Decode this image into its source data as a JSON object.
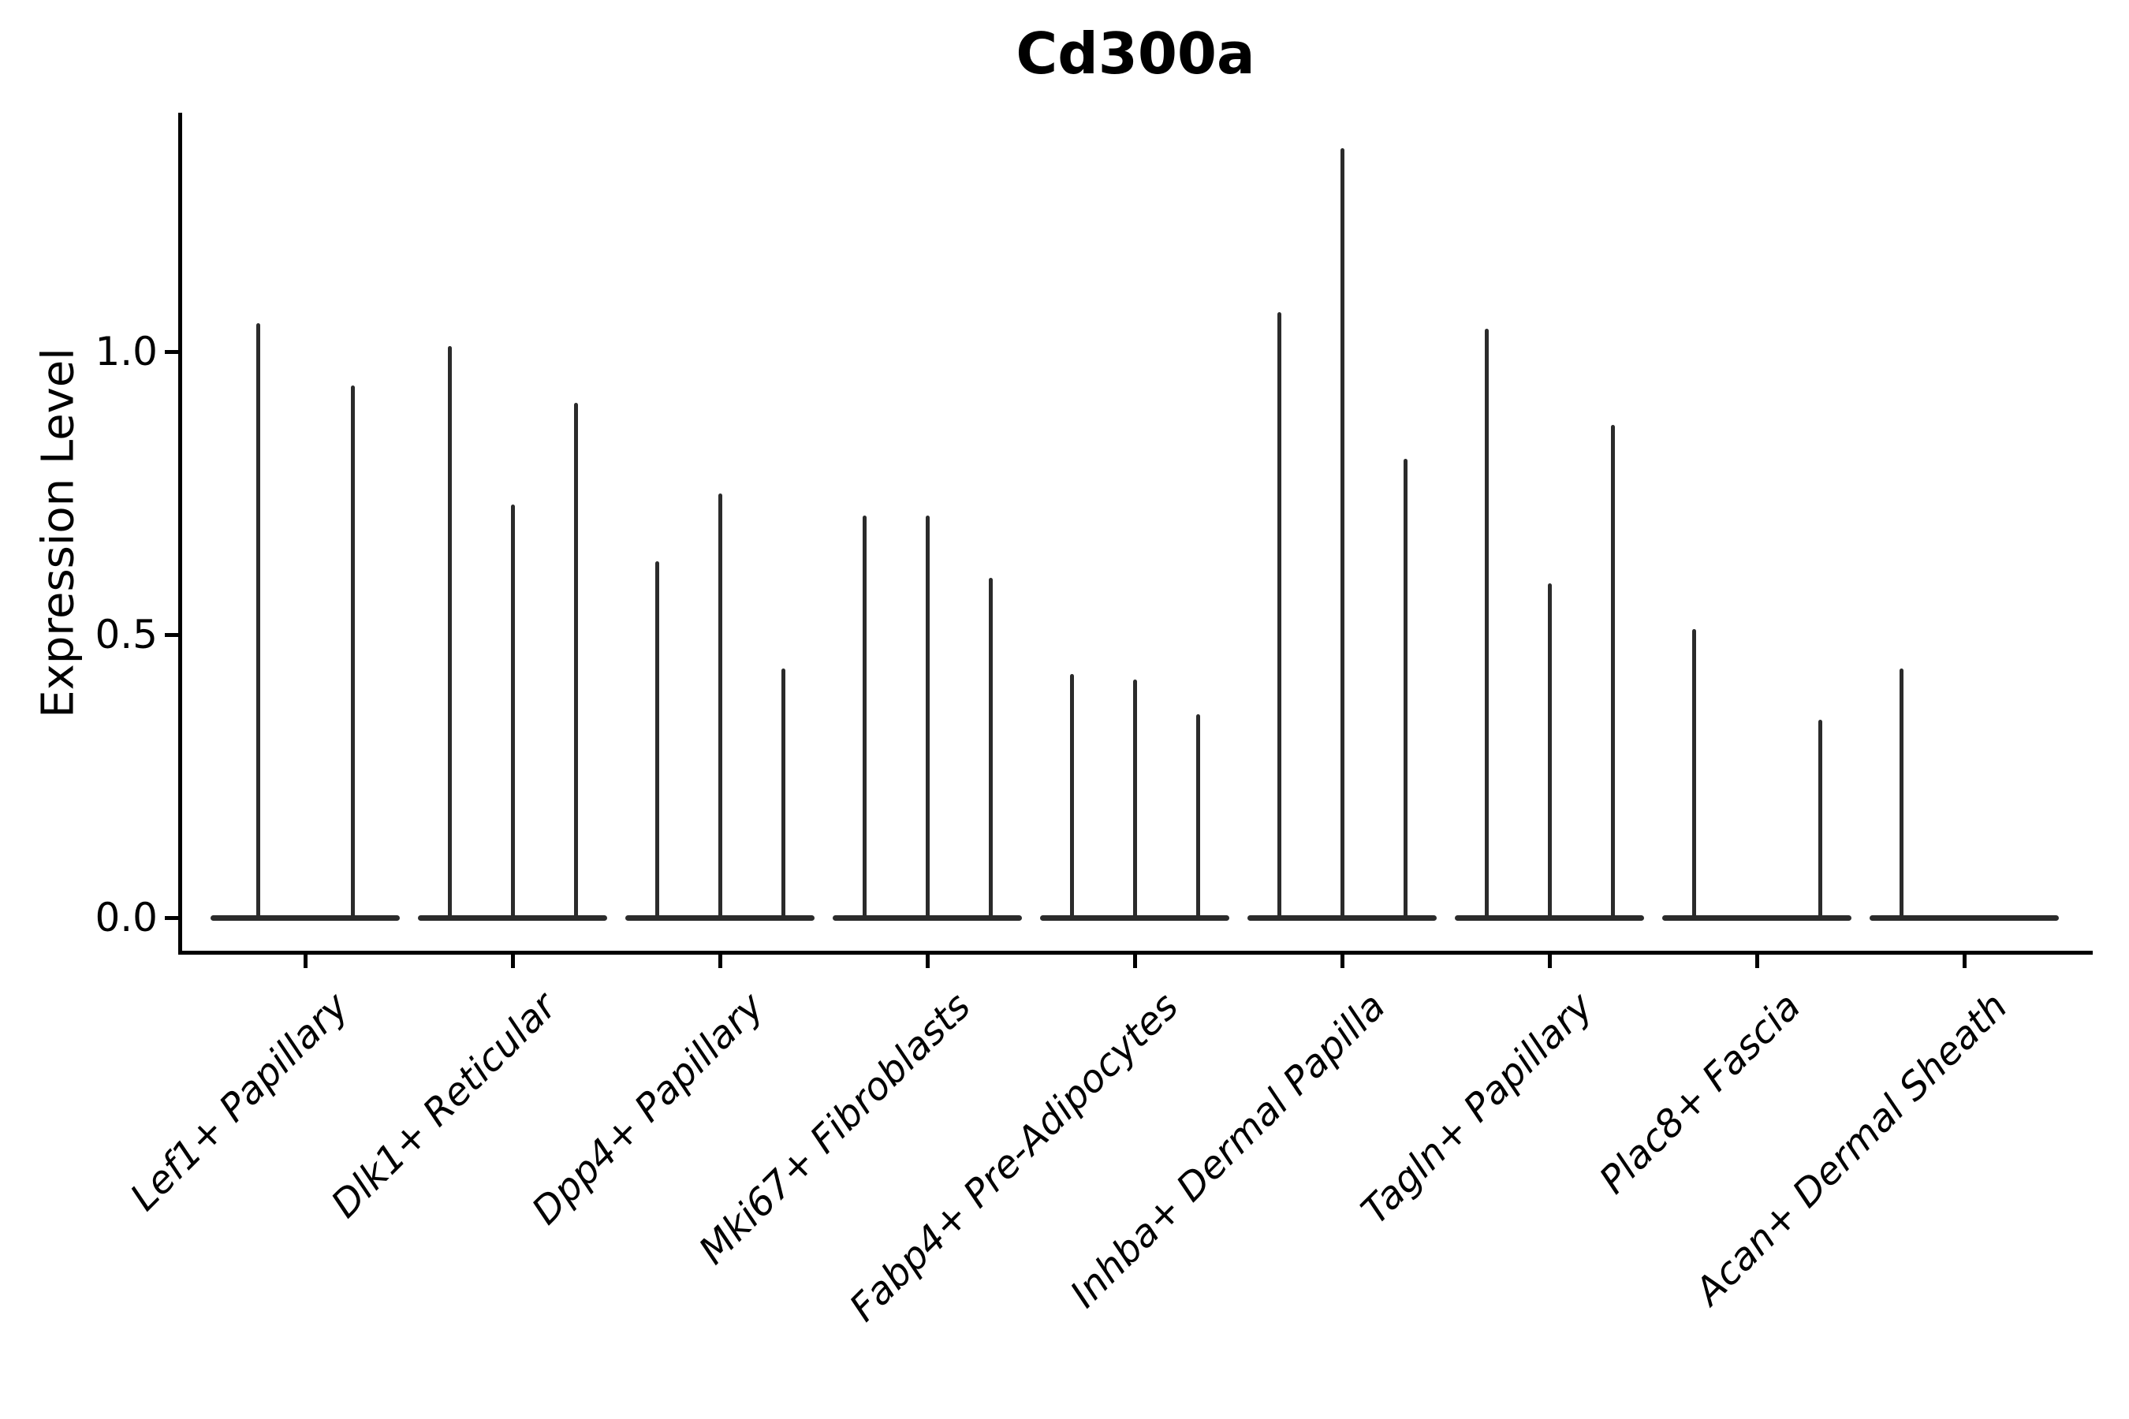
{
  "title": "Cd300a",
  "y_axis": {
    "label": "Expression Level",
    "tick_labels": [
      "0.0",
      "0.5",
      "1.0"
    ]
  },
  "x_axis": {
    "categories": [
      "Lef1+ Papillary",
      "Dlk1+ Reticular",
      "Dpp4+ Papillary",
      "Mki67+ Fibroblasts",
      "Fabp4+ Pre-Adipocytes",
      "Inhba+ Dermal Papilla",
      "Tagln+ Papillary",
      "Plac8+ Fascia",
      "Acan+ Dermal Sheath"
    ]
  },
  "chart_data": {
    "type": "violin",
    "title": "Cd300a",
    "xlabel": "",
    "ylabel": "Expression Level",
    "ylim": [
      -0.07,
      1.42
    ],
    "yticks": [
      0,
      0.5,
      1
    ],
    "grid": false,
    "legend": false,
    "categories": [
      "Lef1+ Papillary",
      "Dlk1+ Reticular",
      "Dpp4+ Papillary",
      "Mki67+ Fibroblasts",
      "Fabp4+ Pre-Adipocytes",
      "Inhba+ Dermal Papilla",
      "Tagln+ Papillary",
      "Plac8+ Fascia",
      "Acan+ Dermal Sheath"
    ],
    "groups": [
      {
        "category": "Lef1+ Papillary",
        "violin_peak_values": [
          1.05,
          0.94
        ]
      },
      {
        "category": "Dlk1+ Reticular",
        "violin_peak_values": [
          1.01,
          0.73,
          0.91
        ]
      },
      {
        "category": "Dpp4+ Papillary",
        "violin_peak_values": [
          0.63,
          0.75,
          0.44
        ]
      },
      {
        "category": "Mki67+ Fibroblasts",
        "violin_peak_values": [
          0.71,
          0.71,
          0.6
        ]
      },
      {
        "category": "Fabp4+ Pre-Adipocytes",
        "violin_peak_values": [
          0.43,
          0.42,
          0.36
        ]
      },
      {
        "category": "Inhba+ Dermal Papilla",
        "violin_peak_values": [
          1.07,
          1.36,
          0.81
        ]
      },
      {
        "category": "Tagln+ Papillary",
        "violin_peak_values": [
          1.04,
          0.59,
          0.87
        ]
      },
      {
        "category": "Plac8+ Fascia",
        "violin_peak_values": [
          0.51,
          0,
          0.35
        ]
      },
      {
        "category": "Acan+ Dermal Sheath",
        "violin_peak_values": [
          0.44,
          0,
          0
        ]
      }
    ],
    "note": "Each violin collapses to a flat bar at 0 expression; thin vertical spikes mark the maximum expression reached within each violin. Violins with a peak value of 0 show no spike.",
    "colors": {
      "violin": "#2b2b2b",
      "axis": "#000000",
      "text": "#000000",
      "background": "#ffffff"
    }
  }
}
